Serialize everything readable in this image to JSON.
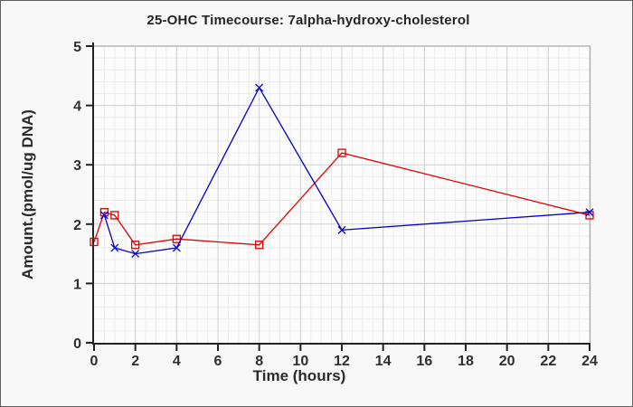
{
  "window": {
    "background": "#f8f8f8",
    "border_color": "#5f5f5f"
  },
  "chart_data": {
    "type": "line",
    "title": "25-OHC Timecourse: 7alpha-hydroxy-cholesterol",
    "xlabel": "Time (hours)",
    "ylabel": "Amount.(pmol/ug DNA)",
    "xlim": [
      0,
      24
    ],
    "ylim": [
      0,
      5
    ],
    "x_ticks": [
      0,
      2,
      4,
      6,
      8,
      10,
      12,
      14,
      16,
      18,
      20,
      22,
      24
    ],
    "y_ticks": [
      0,
      1,
      2,
      3,
      4,
      5
    ],
    "minor_grid": {
      "x_step": 0.5,
      "y_step": 0.2
    },
    "grid": true,
    "legend": "none",
    "series": [
      {
        "name": "red-squares",
        "color": "#dd0000",
        "marker": "open-square",
        "x": [
          0,
          0.5,
          1,
          2,
          4,
          8,
          12,
          24
        ],
        "y": [
          1.7,
          2.2,
          2.15,
          1.65,
          1.75,
          1.65,
          3.2,
          2.15
        ]
      },
      {
        "name": "blue-x",
        "color": "#0000cc",
        "marker": "x",
        "x": [
          0.5,
          1,
          2,
          4,
          8,
          12,
          24
        ],
        "y": [
          2.15,
          1.6,
          1.5,
          1.6,
          4.3,
          1.9,
          2.2
        ]
      }
    ],
    "style": {
      "plot_background": "#fcfcfc",
      "major_grid_color": "#cfcfcf",
      "minor_grid_color": "#ececec",
      "axis_color": "#222222",
      "frame_color": "#b5b5b5",
      "tick_label_color": "#2e2e2e"
    }
  }
}
